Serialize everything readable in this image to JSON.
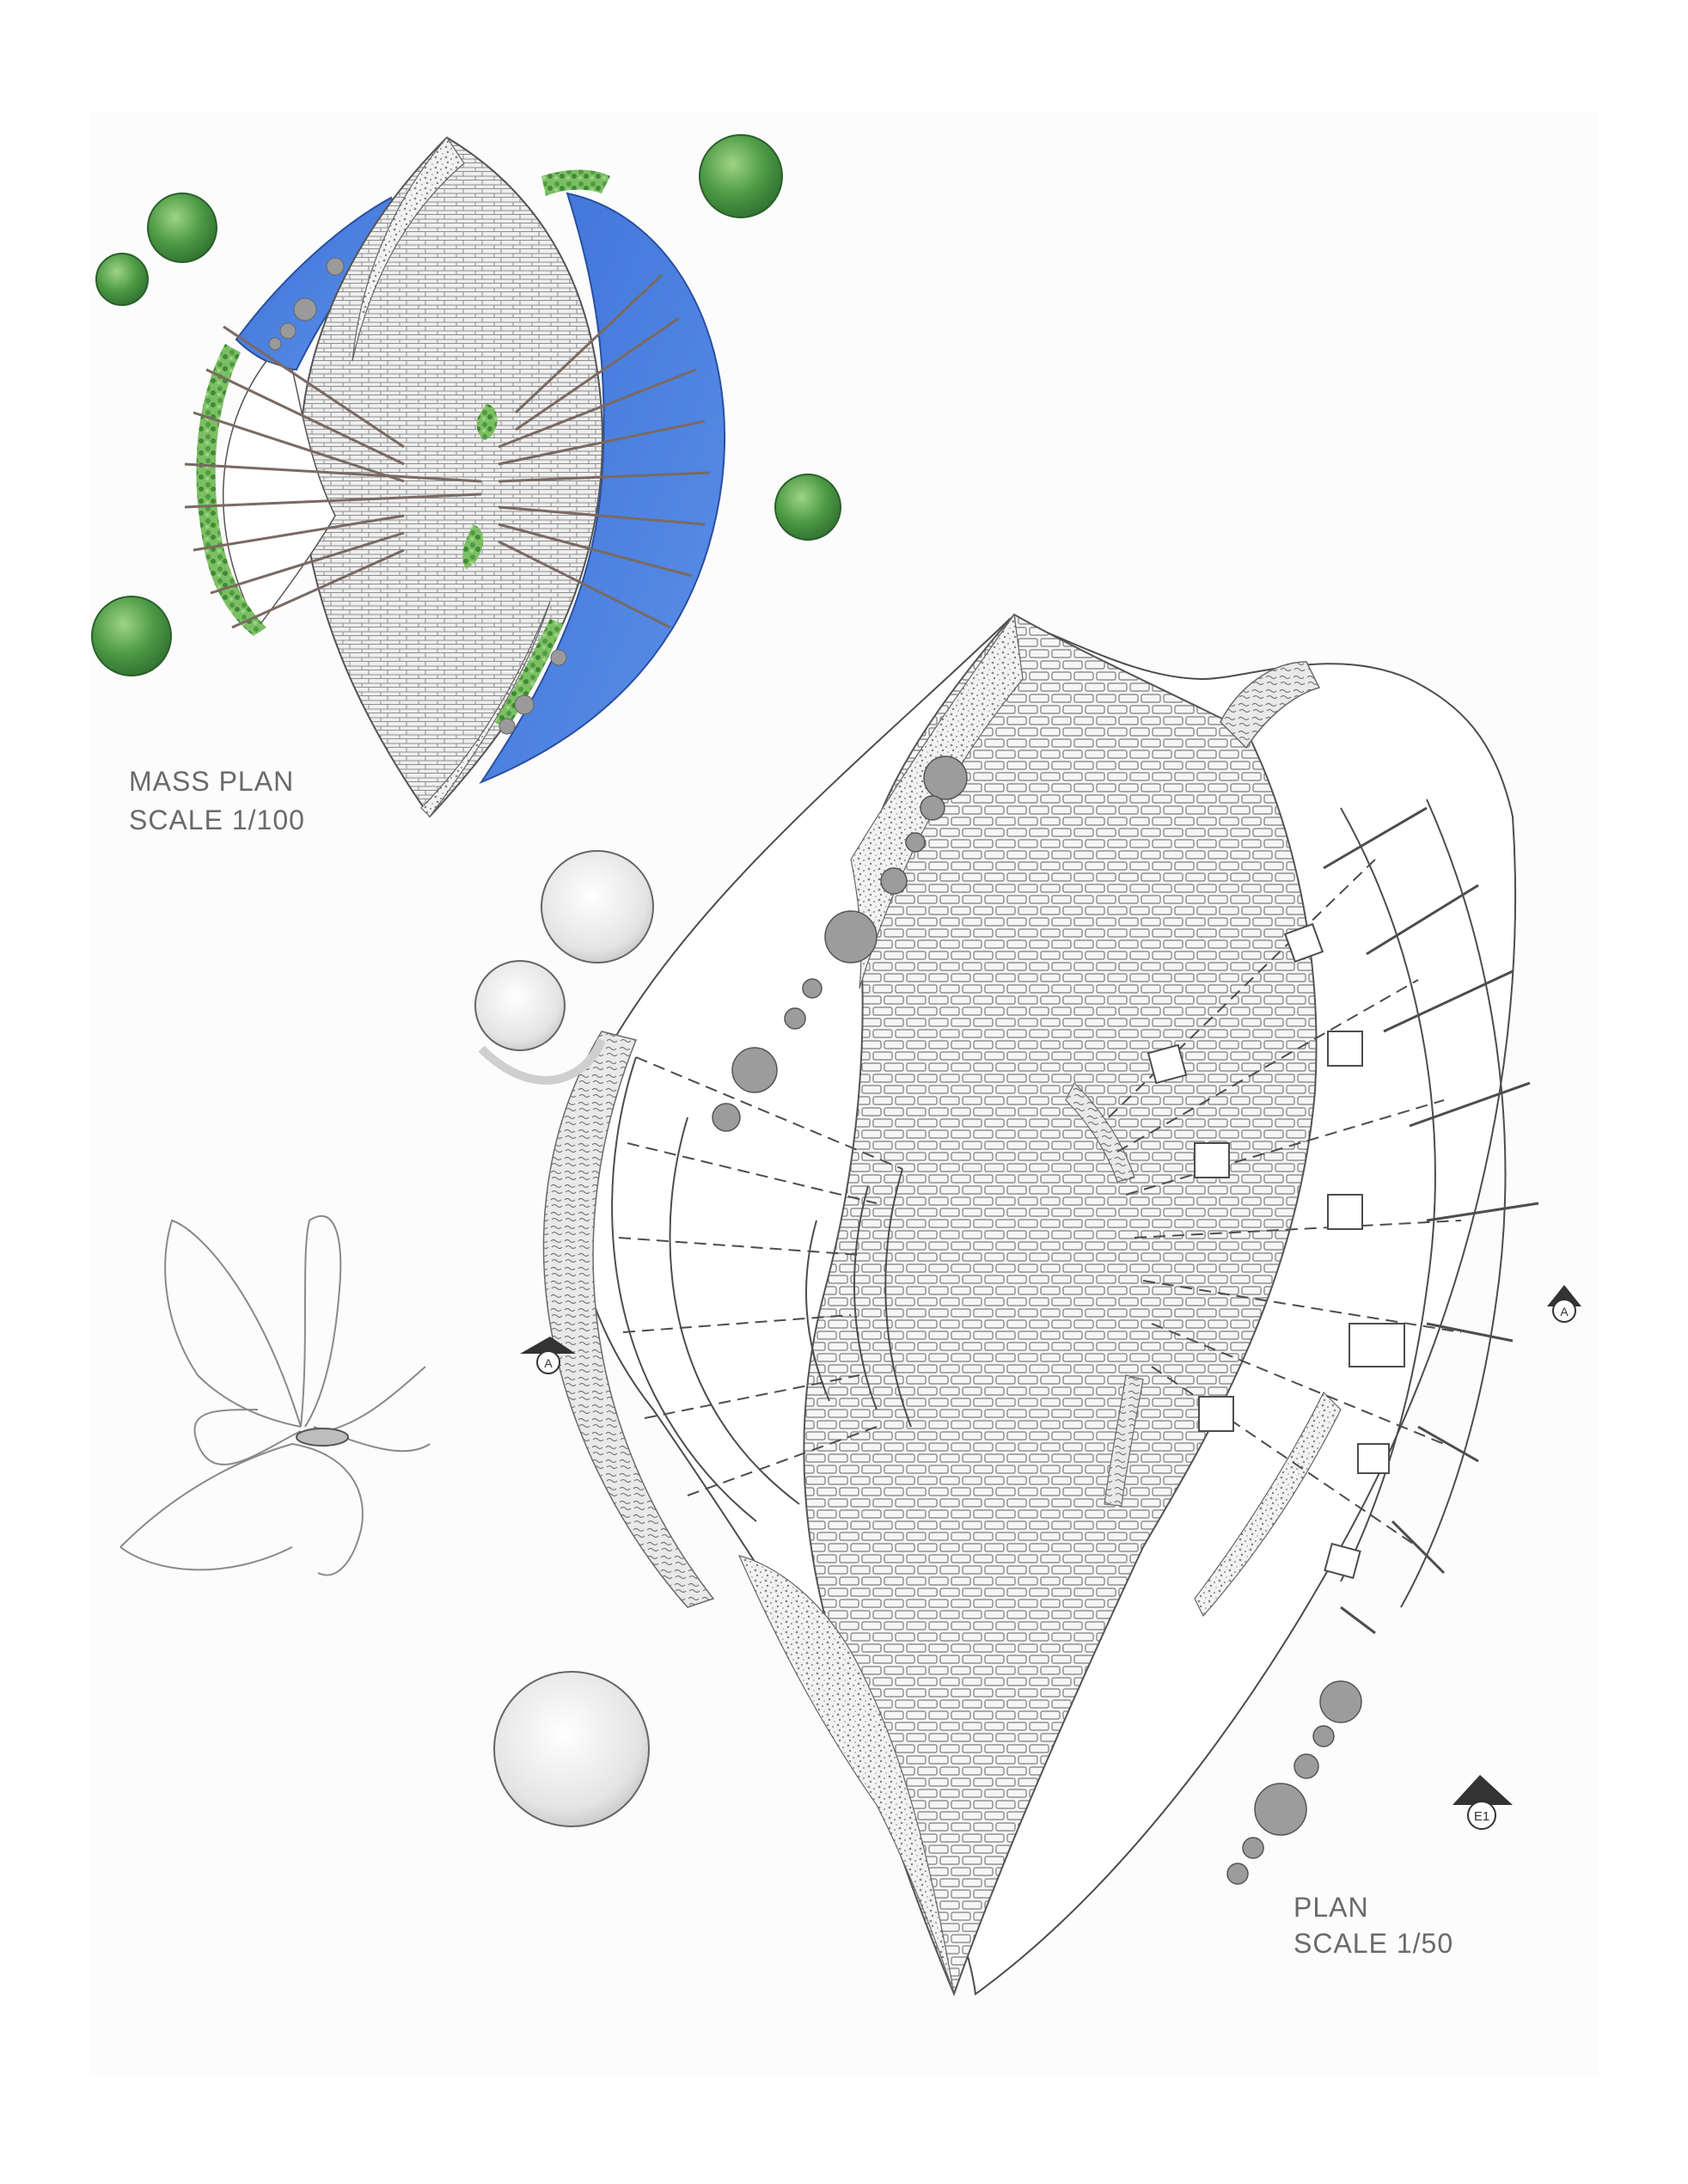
{
  "sheet": {
    "mass_plan": {
      "title": "MASS PLAN",
      "scale": "SCALE 1/100"
    },
    "plan": {
      "title": "PLAN",
      "scale": "SCALE 1/50"
    },
    "section_marker_a": "A",
    "elevation_marker": "E1"
  },
  "colors": {
    "water": "#4a7fe0",
    "greenery": "#5ea94e",
    "paving": "#b5b5b5",
    "ink": "#4d4d4d",
    "stone": "#9c9c9c"
  }
}
